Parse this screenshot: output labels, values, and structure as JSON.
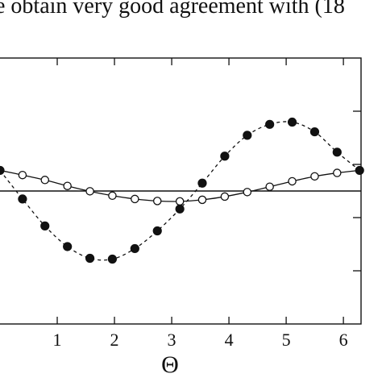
{
  "page": {
    "top_text": "e obtain very good agreement with (18"
  },
  "chart_data": {
    "type": "line",
    "xlabel": "Θ",
    "ylabel": "",
    "xlim": [
      0,
      6.28
    ],
    "ylim": [
      -1.0,
      1.0
    ],
    "x_ticks": [
      1,
      2,
      3,
      4,
      5,
      6
    ],
    "x_tick_labels": [
      "1",
      "2",
      "3",
      "4",
      "5",
      "6"
    ],
    "y_ticks": [
      -0.6,
      -0.2,
      0.2,
      0.6
    ],
    "zero_line": 0,
    "grid": false,
    "series": [
      {
        "marker": "filled-circle",
        "line_style": "dashed",
        "x": [
          0,
          0.393,
          0.785,
          1.178,
          1.571,
          1.963,
          2.356,
          2.749,
          3.142,
          3.534,
          3.927,
          4.32,
          4.712,
          5.105,
          5.498,
          5.89,
          6.283
        ],
        "y": [
          0.155,
          -0.06,
          -0.263,
          -0.418,
          -0.506,
          -0.512,
          -0.433,
          -0.3,
          -0.135,
          0.059,
          0.262,
          0.419,
          0.501,
          0.518,
          0.445,
          0.292,
          0.155
        ]
      },
      {
        "marker": "open-circle",
        "line_style": "solid",
        "x": [
          0,
          0.393,
          0.785,
          1.178,
          1.571,
          1.963,
          2.356,
          2.749,
          3.142,
          3.534,
          3.927,
          4.32,
          4.712,
          5.105,
          5.498,
          5.89,
          6.283
        ],
        "y": [
          0.155,
          0.12,
          0.083,
          0.038,
          -0.002,
          -0.035,
          -0.06,
          -0.075,
          -0.078,
          -0.066,
          -0.042,
          -0.008,
          0.032,
          0.073,
          0.11,
          0.136,
          0.155
        ]
      }
    ]
  }
}
